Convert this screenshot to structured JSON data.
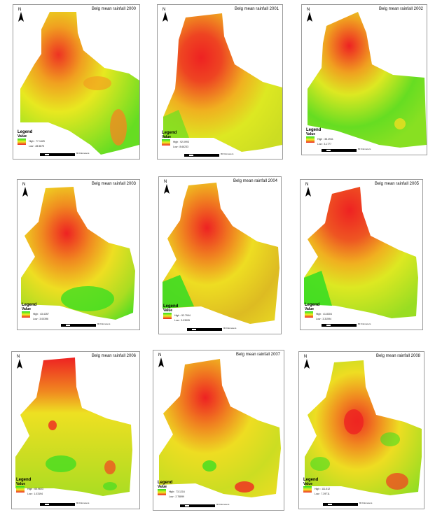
{
  "panels": [
    {
      "title": "Belg mean rainfall 2000",
      "legend_title": "Legend",
      "value_label": "Value",
      "high": "High : 77.1425",
      "low": "Low : 28.5875",
      "scale_unit": "80 Kilometers",
      "scale_ticks": [
        "0",
        "10",
        "20",
        "40",
        "60",
        "80"
      ]
    },
    {
      "title": "Belg mean rainfall 2001",
      "legend_title": "Legend",
      "value_label": "Value",
      "high": "High : 92.0993",
      "low": "Low : 8.66233",
      "scale_unit": "80 Kilometers",
      "scale_ticks": [
        "0",
        "10",
        "20",
        "40",
        "60",
        "80"
      ]
    },
    {
      "title": "Belg mean rainfall 2002",
      "legend_title": "Legend",
      "value_label": "Value",
      "high": "High : 38.2941",
      "low": "Low : 3.1777",
      "scale_unit": "80 Kilometers",
      "scale_ticks": [
        "0",
        "10",
        "20",
        "40",
        "60",
        "80"
      ]
    },
    {
      "title": "Belg mean rainfall 2003",
      "legend_title": "Legend",
      "value_label": "Value",
      "high": "High : 43.4257",
      "low": "Low : 3.00396",
      "scale_unit": "80 Kilometers",
      "scale_ticks": [
        "0",
        "10",
        "20",
        "40",
        "60",
        "80"
      ]
    },
    {
      "title": "Belg mean rainfall 2004",
      "legend_title": "Legend",
      "value_label": "Value",
      "high": "High : 52.7994",
      "low": "Low : 3.03905",
      "scale_unit": "80 Kilometers",
      "scale_ticks": [
        "0",
        "10",
        "20",
        "40",
        "60",
        "80"
      ]
    },
    {
      "title": "Belg mean rainfall 2005",
      "legend_title": "Legend",
      "value_label": "Value",
      "high": "High : 41.8304",
      "low": "Low : 3.31594",
      "scale_unit": "80 Kilometers",
      "scale_ticks": [
        "0",
        "10",
        "20",
        "40",
        "60",
        "80"
      ]
    },
    {
      "title": "Belg mean rainfall 2006",
      "legend_title": "Legend",
      "value_label": "Value",
      "high": "High : 65.9603",
      "low": "Low : 1.03194",
      "scale_unit": "80 Kilometers",
      "scale_ticks": [
        "0",
        "10",
        "20",
        "40",
        "60",
        "80"
      ]
    },
    {
      "title": "Belg mean rainfall 2007",
      "legend_title": "Legend",
      "value_label": "Value",
      "high": "High : 73.1216",
      "low": "Low : 2.76899",
      "scale_unit": "80 Kilometers",
      "scale_ticks": [
        "0",
        "10",
        "20",
        "40",
        "60",
        "80"
      ]
    },
    {
      "title": "Belg mean rainfall 2008",
      "legend_title": "Legend",
      "value_label": "Value",
      "high": "High : 111.612",
      "low": "Low : 7.39711",
      "scale_unit": "80 Kilometers",
      "scale_ticks": [
        "0",
        "10",
        "20",
        "40",
        "60",
        "80"
      ]
    }
  ],
  "north_label": "N",
  "colors": {
    "high": "#22dd22",
    "mid": "#eeee22",
    "low": "#ee2222"
  }
}
